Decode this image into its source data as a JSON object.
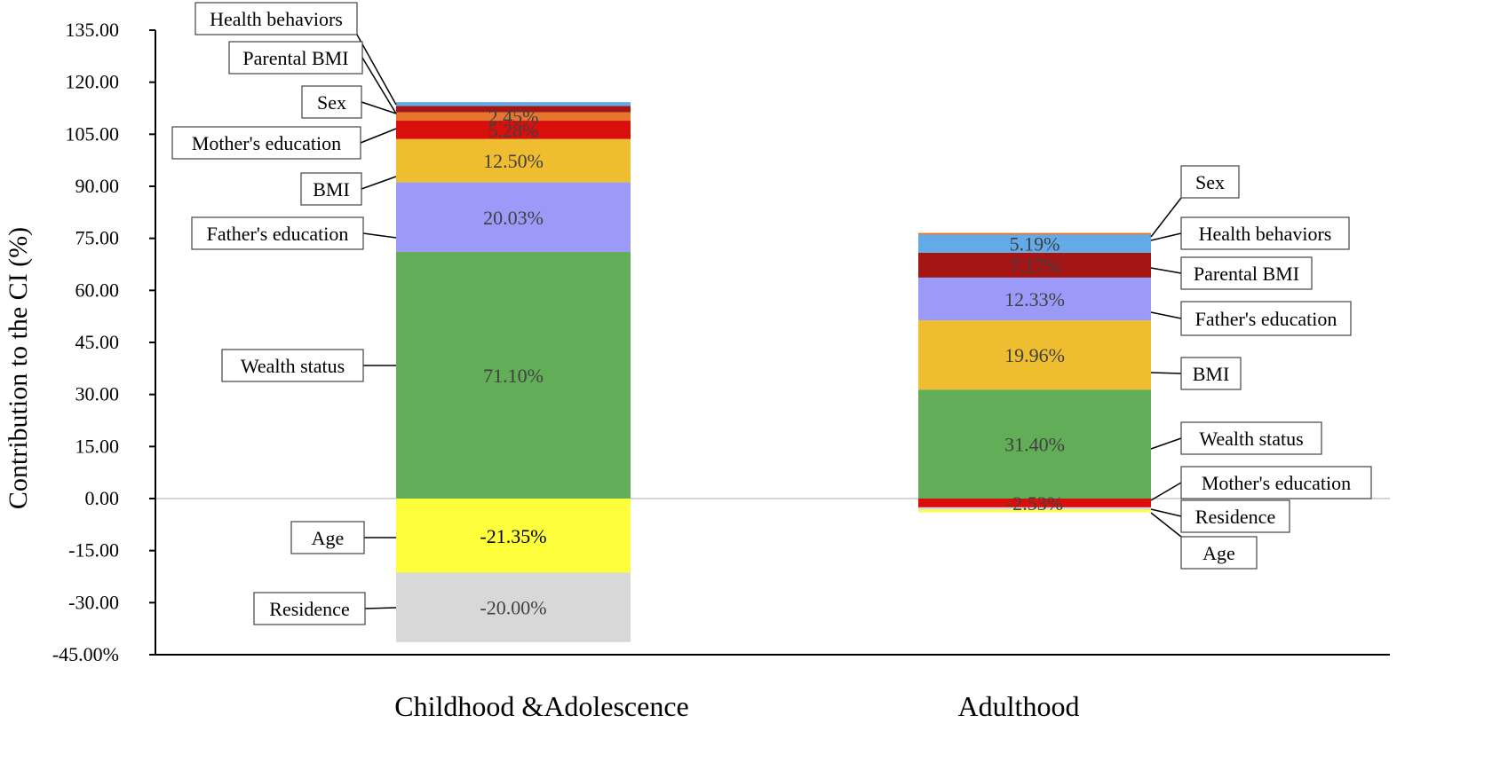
{
  "chart_data": {
    "type": "bar",
    "stacked": true,
    "ylabel": "Contribution to the  CI (%)",
    "ylim": [
      -45,
      135
    ],
    "yticks": [
      {
        "value": 135,
        "label": "135.00"
      },
      {
        "value": 120,
        "label": "120.00"
      },
      {
        "value": 105,
        "label": "105.00"
      },
      {
        "value": 90,
        "label": "90.00"
      },
      {
        "value": 75,
        "label": "75.00"
      },
      {
        "value": 60,
        "label": "60.00"
      },
      {
        "value": 45,
        "label": "45.00"
      },
      {
        "value": 30,
        "label": "30.00"
      },
      {
        "value": 15,
        "label": "15.00"
      },
      {
        "value": 0,
        "label": "0.00"
      },
      {
        "value": -15,
        "label": "-15.00"
      },
      {
        "value": -30,
        "label": "-30.00"
      },
      {
        "value": -45,
        "label": "-45.00%"
      }
    ],
    "categories": [
      "Childhood &Adolescence",
      "Adulthood"
    ],
    "colors": {
      "Wealth status": "#62ad57",
      "Father's education": "#9c9af8",
      "BMI": "#eebd30",
      "Mother's education": "#d80f0b",
      "Sex": "#a41515",
      "Parental BMI": "#e57630",
      "Health behaviors": "#62abe8",
      "Age": "#fefe3c",
      "Residence": "#d8d8d8"
    },
    "bars": [
      {
        "category": "Childhood &Adolescence",
        "positive": [
          {
            "name": "Wealth status",
            "value": 71.1,
            "label": "71.10%",
            "color": "#62ad57"
          },
          {
            "name": "Father's education",
            "value": 20.03,
            "label": "20.03%",
            "color": "#9c9af8"
          },
          {
            "name": "BMI",
            "value": 12.5,
            "label": "12.50%",
            "color": "#eebd30"
          },
          {
            "name": "Mother's education",
            "value": 5.28,
            "label": "5.28%",
            "color": "#d80f0b"
          },
          {
            "name": "Parental BMI",
            "value": 2.45,
            "label": "2.45%",
            "color": "#e57630"
          },
          {
            "name": "Sex",
            "value": 1.8,
            "label": "",
            "color": "#a41515"
          },
          {
            "name": "Health behaviors",
            "value": 1.1,
            "label": "",
            "color": "#62abe8"
          }
        ],
        "negative": [
          {
            "name": "Age",
            "value": -21.35,
            "label": "-21.35%",
            "color": "#fefe3c"
          },
          {
            "name": "Residence",
            "value": -20.0,
            "label": "-20.00%",
            "color": "#d8d8d8"
          }
        ]
      },
      {
        "category": "Adulthood",
        "positive": [
          {
            "name": "Wealth status",
            "value": 31.4,
            "label": "31.40%",
            "color": "#62ad57"
          },
          {
            "name": "BMI",
            "value": 19.96,
            "label": "19.96%",
            "color": "#eebd30"
          },
          {
            "name": "Father's education",
            "value": 12.33,
            "label": "12.33%",
            "color": "#9c9af8"
          },
          {
            "name": "Parental BMI",
            "value": 7.17,
            "label": "7.17%",
            "color": "#a41515"
          },
          {
            "name": "Health behaviors",
            "value": 5.19,
            "label": "5.19%",
            "color": "#62abe8"
          },
          {
            "name": "Sex",
            "value": 0.5,
            "label": "",
            "color": "#e57630"
          }
        ],
        "negative": [
          {
            "name": "Mother's education",
            "value": -2.53,
            "label": "-2.53%",
            "color": "#d80f0b"
          },
          {
            "name": "Residence",
            "value": -0.7,
            "label": "",
            "color": "#d8d8d8"
          },
          {
            "name": "Age",
            "value": -0.7,
            "label": "",
            "color": "#fefe3c"
          }
        ]
      }
    ],
    "callouts": [
      {
        "text": "Health behaviors",
        "bar": 0,
        "series": "Health behaviors",
        "side": "left"
      },
      {
        "text": "Parental BMI",
        "bar": 0,
        "series": "Parental BMI",
        "side": "left"
      },
      {
        "text": "Sex",
        "bar": 0,
        "series": "Sex",
        "side": "left"
      },
      {
        "text": "Mother's education",
        "bar": 0,
        "series": "Mother's education",
        "side": "left"
      },
      {
        "text": "BMI",
        "bar": 0,
        "series": "BMI",
        "side": "left"
      },
      {
        "text": "Father's education",
        "bar": 0,
        "series": "Father's education",
        "side": "left"
      },
      {
        "text": "Wealth status",
        "bar": 0,
        "series": "Wealth status",
        "side": "left"
      },
      {
        "text": "Age",
        "bar": 0,
        "series": "Age",
        "side": "left"
      },
      {
        "text": "Residence",
        "bar": 0,
        "series": "Residence",
        "side": "left"
      },
      {
        "text": "Sex",
        "bar": 1,
        "series": "Sex",
        "side": "right"
      },
      {
        "text": "Health behaviors",
        "bar": 1,
        "series": "Health behaviors",
        "side": "right"
      },
      {
        "text": "Parental BMI",
        "bar": 1,
        "series": "Parental BMI",
        "side": "right"
      },
      {
        "text": "Father's education",
        "bar": 1,
        "series": "Father's education",
        "side": "right"
      },
      {
        "text": "BMI",
        "bar": 1,
        "series": "BMI",
        "side": "right"
      },
      {
        "text": "Wealth status",
        "bar": 1,
        "series": "Wealth status",
        "side": "right"
      },
      {
        "text": "Mother's education",
        "bar": 1,
        "series": "Mother's education",
        "side": "right"
      },
      {
        "text": "Residence",
        "bar": 1,
        "series": "Residence",
        "side": "right"
      },
      {
        "text": "Age",
        "bar": 1,
        "series": "Age",
        "side": "right"
      }
    ]
  }
}
